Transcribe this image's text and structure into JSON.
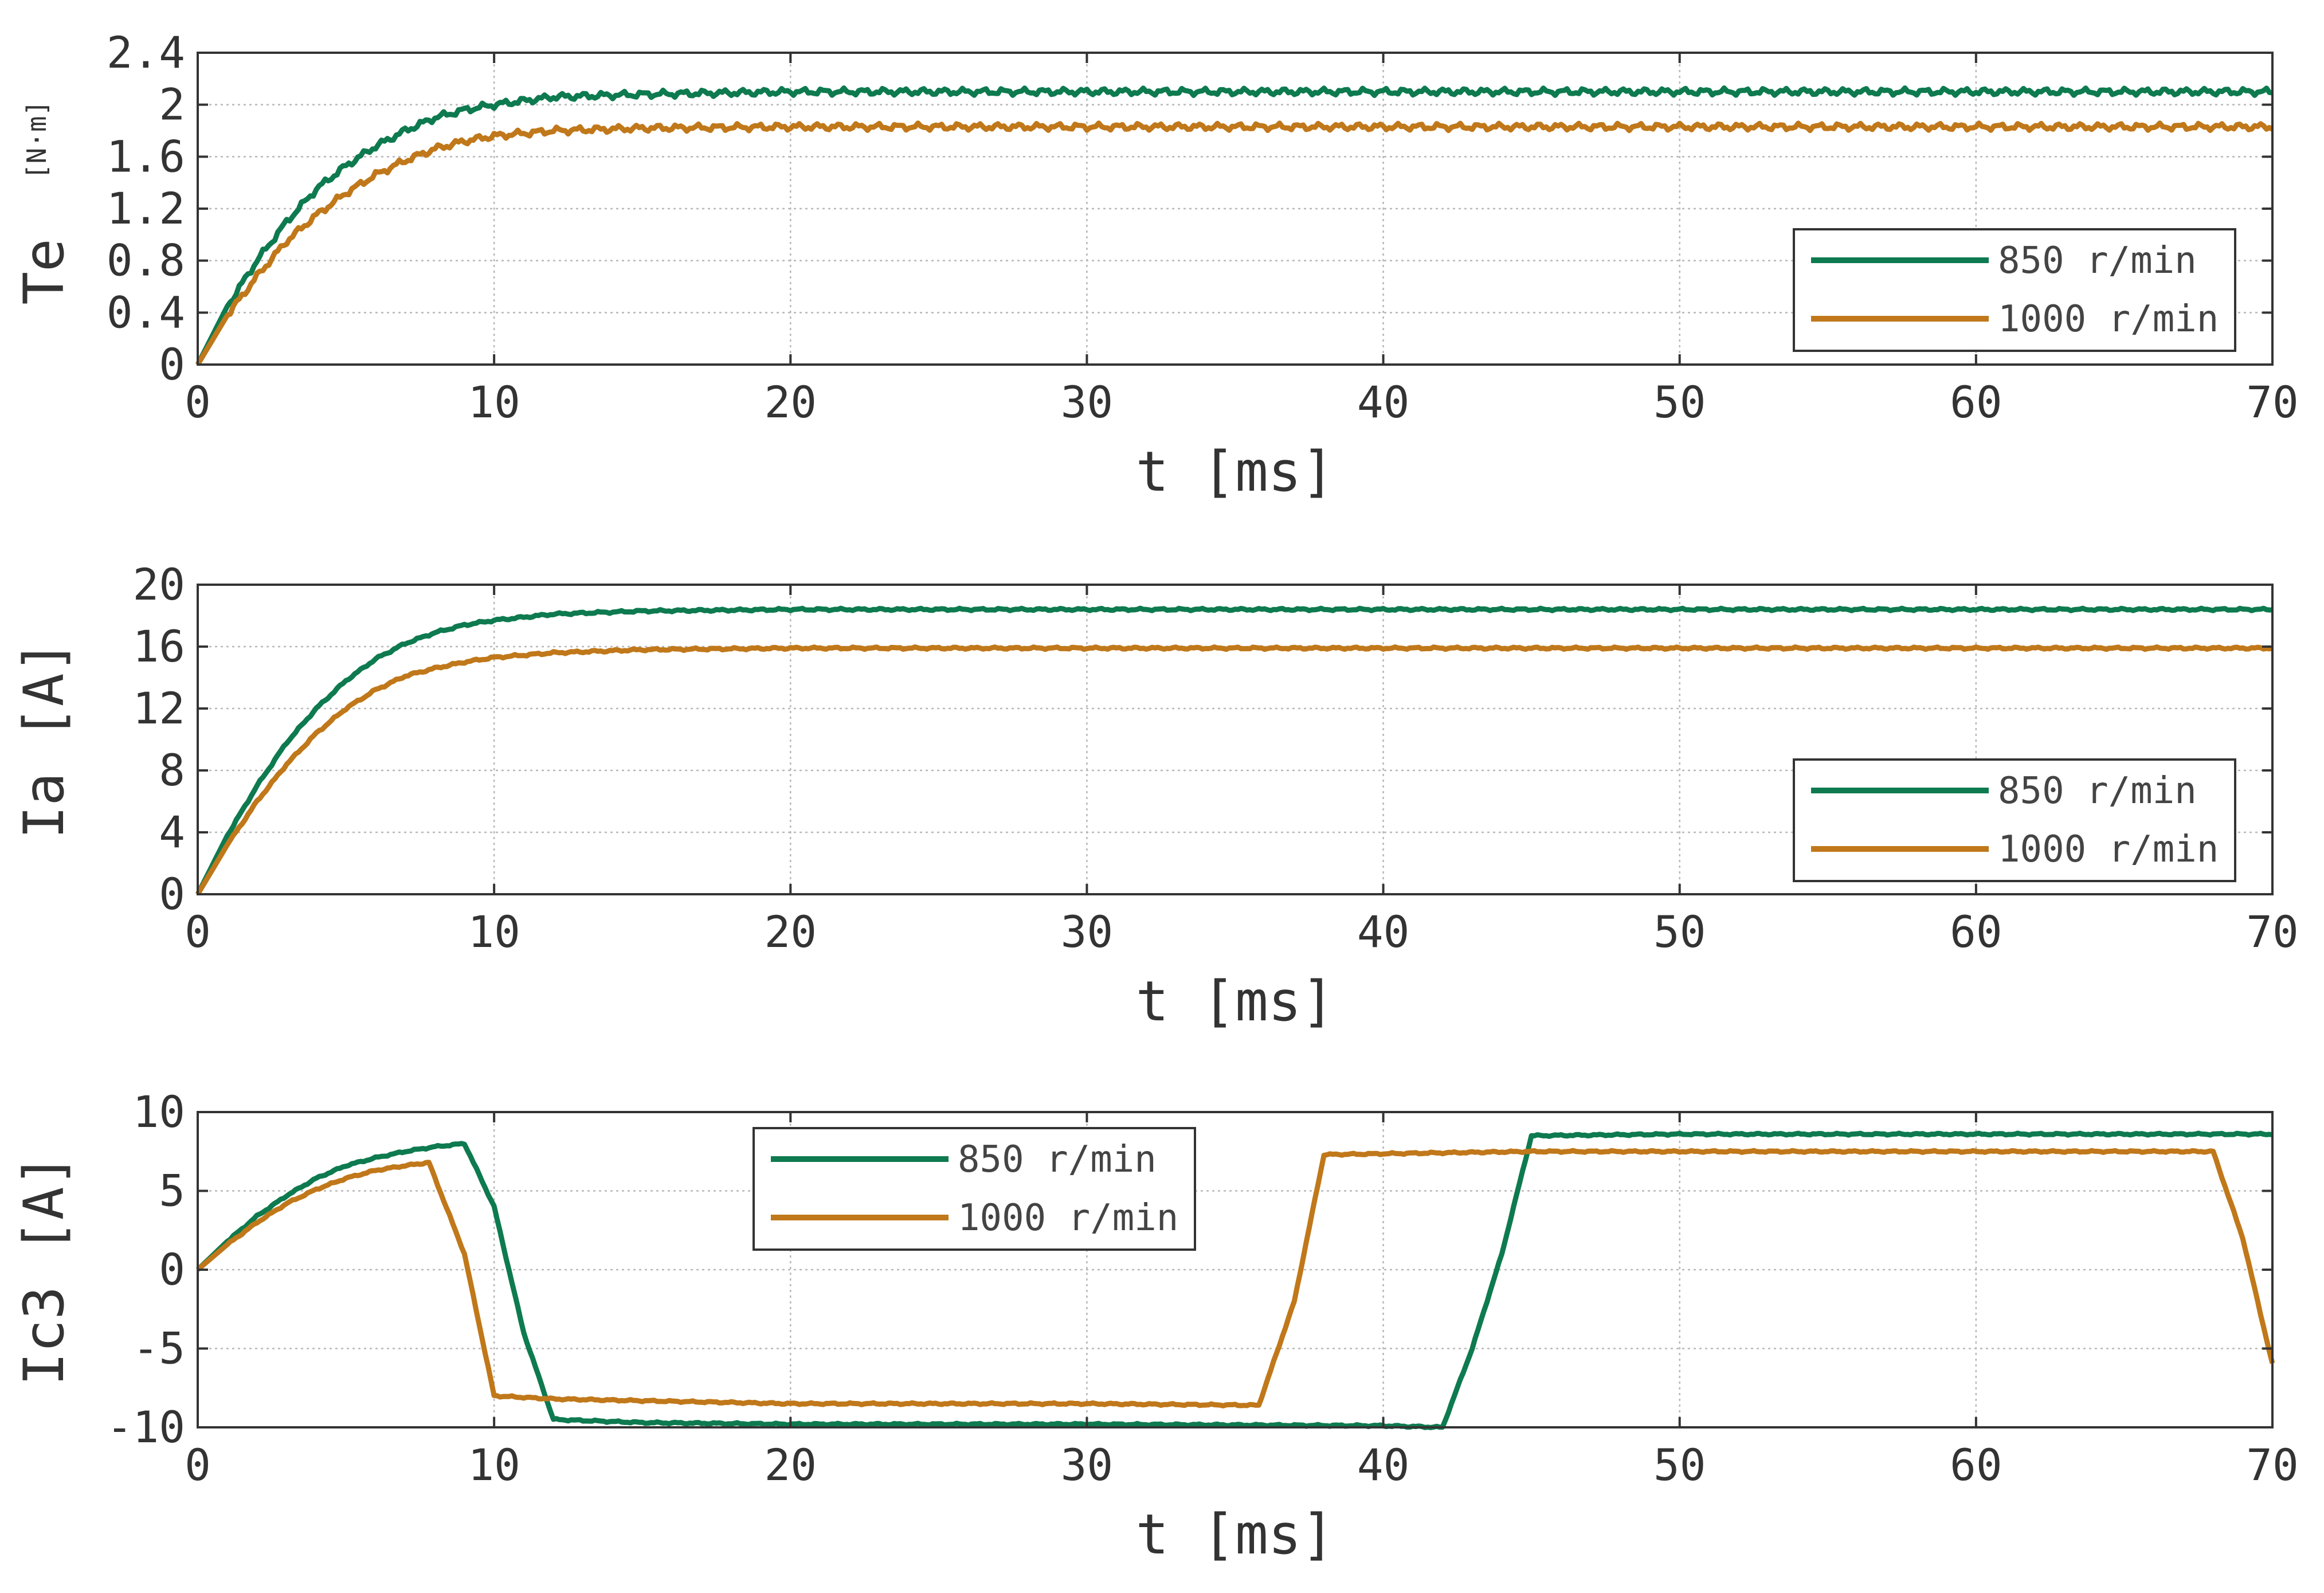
{
  "colors": {
    "series_850": "#0e7a4f",
    "series_1000": "#c0781a",
    "axis": "#333333",
    "grid": "#b8b8b8"
  },
  "chart_data": [
    {
      "type": "line",
      "ylabel": "Te",
      "ylabel_unit": "[N·m]",
      "xlabel": "t [ms]",
      "xlim": [
        0,
        70
      ],
      "ylim": [
        0,
        2.4
      ],
      "xticks": [
        0,
        10,
        20,
        30,
        40,
        50,
        60,
        70
      ],
      "yticks": [
        0,
        0.4,
        0.8,
        1.2,
        1.6,
        2,
        2.4
      ],
      "ytick_labels": [
        "0",
        "0.4",
        "0.8",
        "1.2",
        "1.6",
        "2",
        "2.4"
      ],
      "grid": true,
      "legend": "lower-right",
      "series": [
        {
          "name": "850 r/min",
          "color": "#0e7a4f",
          "x": [
            0,
            1,
            2,
            3,
            4,
            5,
            6,
            7,
            8,
            9,
            10,
            12,
            15,
            20,
            25,
            30,
            35,
            40,
            45,
            50,
            55,
            60,
            65,
            70
          ],
          "y": [
            0,
            0.45,
            0.8,
            1.1,
            1.35,
            1.53,
            1.68,
            1.8,
            1.9,
            1.96,
            2.0,
            2.06,
            2.08,
            2.1,
            2.1,
            2.1,
            2.1,
            2.1,
            2.1,
            2.1,
            2.1,
            2.1,
            2.1,
            2.1
          ]
        },
        {
          "name": "1000 r/min",
          "color": "#c0781a",
          "x": [
            0,
            1,
            2,
            3,
            4,
            5,
            6,
            7,
            8,
            9,
            10,
            12,
            15,
            20,
            25,
            30,
            35,
            40,
            45,
            50,
            55,
            60,
            65,
            70
          ],
          "y": [
            0,
            0.38,
            0.68,
            0.95,
            1.15,
            1.32,
            1.46,
            1.57,
            1.66,
            1.72,
            1.76,
            1.8,
            1.82,
            1.83,
            1.83,
            1.83,
            1.83,
            1.83,
            1.83,
            1.83,
            1.83,
            1.83,
            1.83,
            1.83
          ]
        }
      ]
    },
    {
      "type": "line",
      "ylabel": "Ia [A]",
      "xlabel": "t [ms]",
      "xlim": [
        0,
        70
      ],
      "ylim": [
        0,
        20
      ],
      "xticks": [
        0,
        10,
        20,
        30,
        40,
        50,
        60,
        70
      ],
      "yticks": [
        0,
        4,
        8,
        12,
        16,
        20
      ],
      "ytick_labels": [
        "0",
        "4",
        "8",
        "12",
        "16",
        "20"
      ],
      "grid": true,
      "legend": "lower-right",
      "series": [
        {
          "name": "850 r/min",
          "color": "#0e7a4f",
          "x": [
            0,
            1,
            2,
            3,
            4,
            5,
            6,
            7,
            8,
            9,
            10,
            12,
            15,
            20,
            30,
            40,
            50,
            60,
            70
          ],
          "y": [
            0,
            3.8,
            7,
            9.8,
            12,
            13.8,
            15.2,
            16.2,
            16.9,
            17.4,
            17.7,
            18.1,
            18.3,
            18.4,
            18.4,
            18.4,
            18.4,
            18.4,
            18.4
          ]
        },
        {
          "name": "1000 r/min",
          "color": "#c0781a",
          "x": [
            0,
            1,
            2,
            3,
            4,
            5,
            6,
            7,
            8,
            9,
            10,
            12,
            15,
            20,
            30,
            40,
            50,
            60,
            70
          ],
          "y": [
            0,
            3.2,
            6,
            8.4,
            10.4,
            12,
            13.2,
            14.1,
            14.6,
            15,
            15.3,
            15.6,
            15.8,
            15.9,
            15.9,
            15.9,
            15.9,
            15.9,
            15.9
          ]
        }
      ]
    },
    {
      "type": "line",
      "ylabel": "Ic3 [A]",
      "xlabel": "t [ms]",
      "xlim": [
        0,
        70
      ],
      "ylim": [
        -10,
        10
      ],
      "xticks": [
        0,
        10,
        20,
        30,
        40,
        50,
        60,
        70
      ],
      "yticks": [
        -10,
        -5,
        0,
        5,
        10
      ],
      "ytick_labels": [
        "-10",
        "-5",
        "0",
        "5",
        "10"
      ],
      "grid": true,
      "legend": "upper-center",
      "series": [
        {
          "name": "850 r/min",
          "color": "#0e7a4f",
          "x": [
            0,
            1,
            2,
            3,
            4,
            5,
            6,
            7,
            8,
            9,
            10,
            11,
            12,
            15,
            20,
            30,
            40,
            42,
            43,
            44,
            45,
            50,
            60,
            70
          ],
          "y": [
            0,
            1.8,
            3.4,
            4.7,
            5.8,
            6.6,
            7.1,
            7.5,
            7.8,
            8,
            4,
            -4,
            -9.5,
            -9.7,
            -9.8,
            -9.8,
            -9.9,
            -10,
            -5,
            1,
            8.5,
            8.6,
            8.6,
            8.6
          ]
        },
        {
          "name": "1000 r/min",
          "color": "#c0781a",
          "x": [
            0,
            1,
            2,
            3,
            4,
            5,
            6,
            7,
            7.8,
            9,
            10,
            12,
            20,
            30,
            35.8,
            37,
            38,
            45,
            60,
            68,
            69,
            70
          ],
          "y": [
            0,
            1.6,
            3,
            4.2,
            5.1,
            5.8,
            6.3,
            6.6,
            6.8,
            1,
            -8,
            -8.2,
            -8.5,
            -8.5,
            -8.6,
            -2,
            7.3,
            7.5,
            7.5,
            7.5,
            2,
            -6
          ]
        }
      ]
    }
  ]
}
